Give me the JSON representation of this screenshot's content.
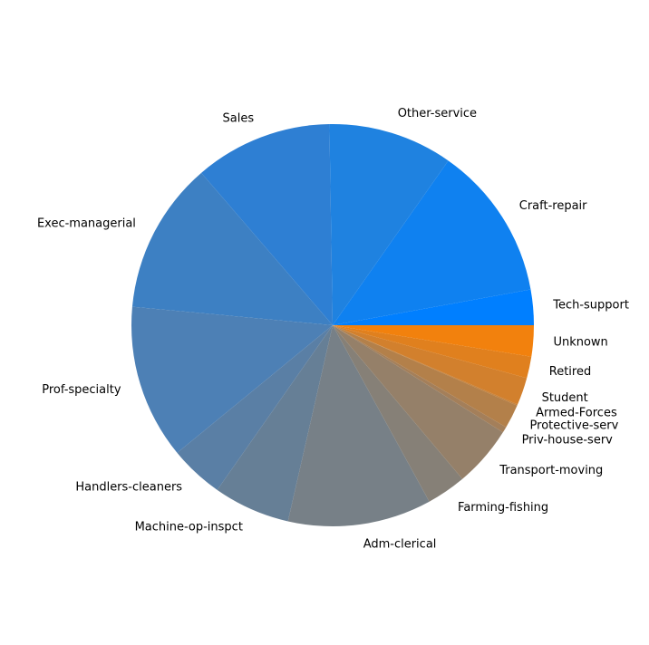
{
  "chart_data": {
    "type": "pie",
    "title": "",
    "start_angle_deg": 0,
    "direction": "counterclockwise",
    "slices": [
      {
        "label": "Tech-support",
        "value": 2.96,
        "color": "#007fff"
      },
      {
        "label": "Craft-repair",
        "value": 12.9,
        "color": "#0f81f0"
      },
      {
        "label": "Other-service",
        "value": 10.4,
        "color": "#1f82e0"
      },
      {
        "label": "Sales",
        "value": 11.5,
        "color": "#2e7fd3"
      },
      {
        "label": "Exec-managerial",
        "value": 12.7,
        "color": "#3d80c3"
      },
      {
        "label": "Prof-specialty",
        "value": 12.9,
        "color": "#4d80b5"
      },
      {
        "label": "Handlers-cleaners",
        "value": 4.5,
        "color": "#5a7fa5"
      },
      {
        "label": "Machine-op-inspct",
        "value": 6.4,
        "color": "#667f96"
      },
      {
        "label": "Adm-clerical",
        "value": 12.0,
        "color": "#778087"
      },
      {
        "label": "Farming-fishing",
        "value": 3.3,
        "color": "#868077"
      },
      {
        "label": "Transport-moving",
        "value": 5.1,
        "color": "#958069"
      },
      {
        "label": "Priv-house-serv",
        "value": 0.5,
        "color": "#a47f5a"
      },
      {
        "label": "Protective-serv",
        "value": 2.0,
        "color": "#b3804a"
      },
      {
        "label": "Armed-Forces",
        "value": 0.1,
        "color": "#c2803c"
      },
      {
        "label": "Student",
        "value": 2.3,
        "color": "#d2802d"
      },
      {
        "label": "Retired",
        "value": 1.8,
        "color": "#e0801e"
      },
      {
        "label": "Unknown",
        "value": 2.6,
        "color": "#f2810d"
      }
    ]
  }
}
